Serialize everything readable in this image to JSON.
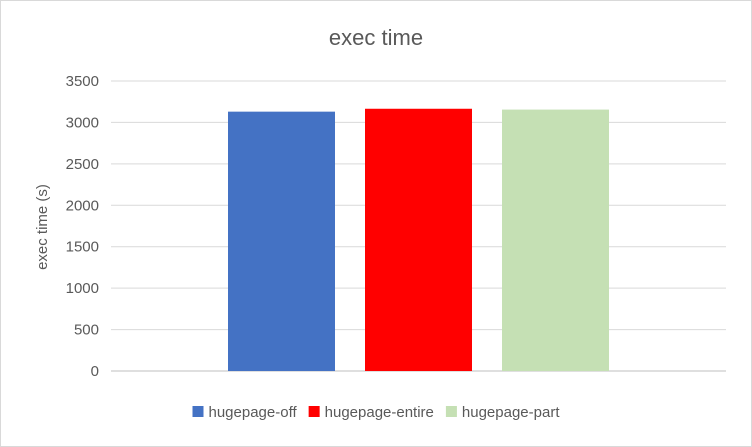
{
  "chart_data": {
    "type": "bar",
    "title": "exec time",
    "xlabel": "",
    "ylabel": "exec time (s)",
    "ylim": [
      0,
      3500
    ],
    "yticks": [
      "0",
      "500",
      "1000",
      "1500",
      "2000",
      "2500",
      "3000",
      "3500"
    ],
    "grid": true,
    "legend_position": "bottom",
    "series": [
      {
        "name": "hugepage-off",
        "value": 3130,
        "color": "#4472c4"
      },
      {
        "name": "hugepage-entire",
        "value": 3165,
        "color": "#ff0000"
      },
      {
        "name": "hugepage-part",
        "value": 3155,
        "color": "#c5e0b4"
      }
    ]
  }
}
